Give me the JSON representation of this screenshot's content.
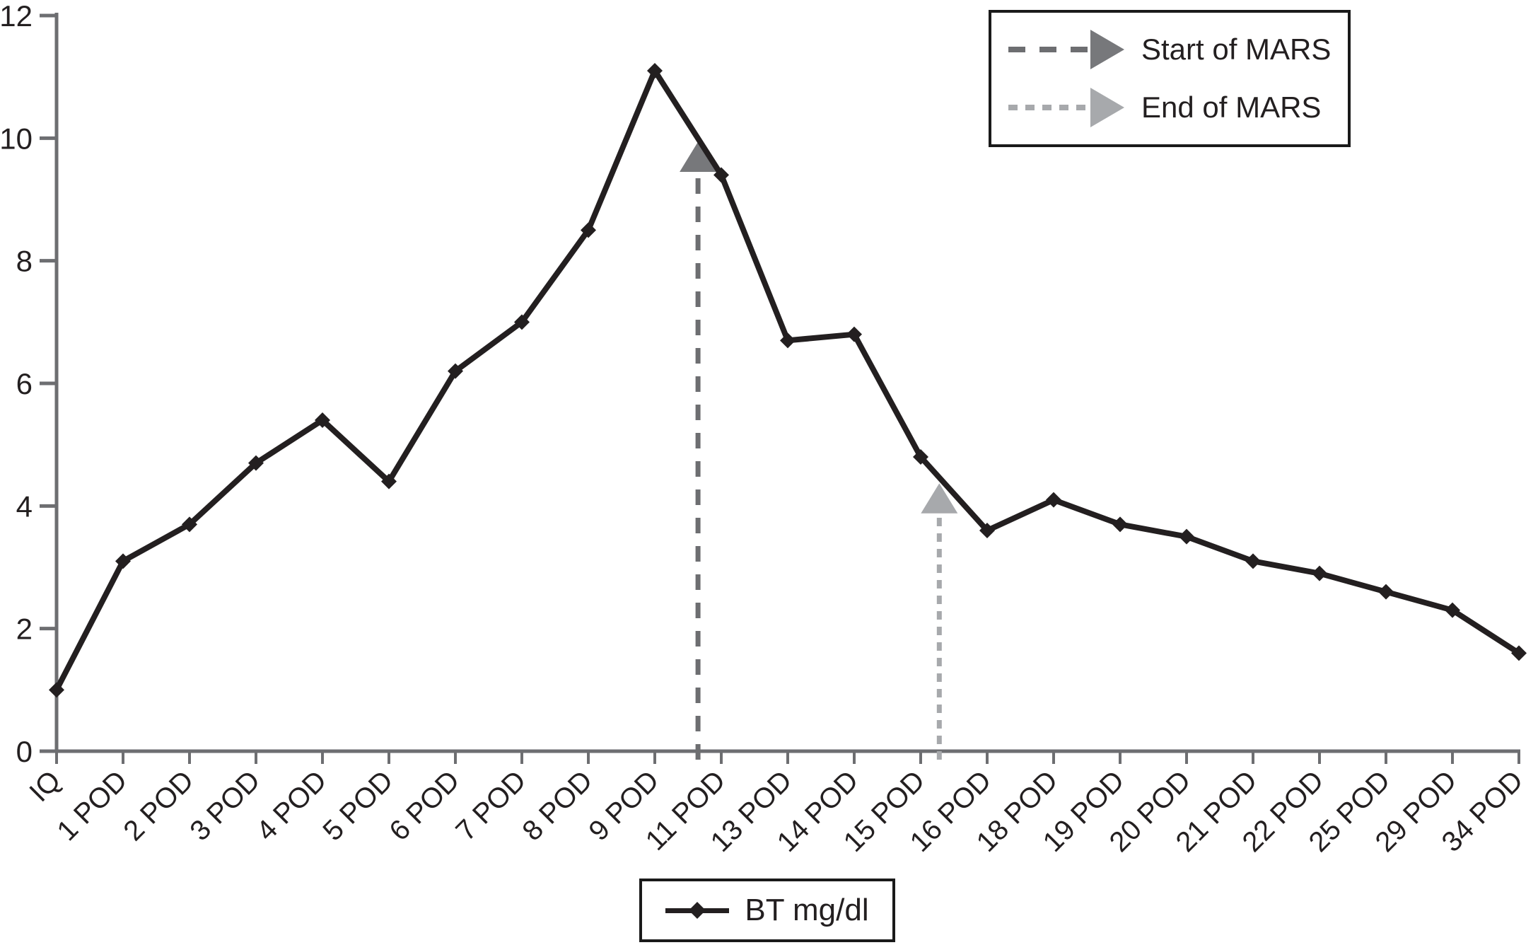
{
  "chart_data": {
    "type": "line",
    "title": "",
    "xlabel": "",
    "ylabel": "",
    "categories": [
      "IQ",
      "1 POD",
      "2 POD",
      "3 POD",
      "4 POD",
      "5 POD",
      "6 POD",
      "7 POD",
      "8 POD",
      "9 POD",
      "11 POD",
      "13 POD",
      "14 POD",
      "15 POD",
      "16 POD",
      "18 POD",
      "19 POD",
      "20 POD",
      "21 POD",
      "22 POD",
      "25 POD",
      "29 POD",
      "34 POD"
    ],
    "series": [
      {
        "name": "BT mg/dl",
        "color": "#231f20",
        "marker": "diamond",
        "values": [
          1.0,
          3.1,
          3.7,
          4.7,
          5.4,
          4.4,
          6.2,
          7.0,
          8.5,
          11.1,
          9.4,
          6.7,
          6.8,
          4.8,
          3.6,
          4.1,
          3.7,
          3.5,
          3.1,
          2.9,
          2.6,
          2.3,
          1.6
        ]
      }
    ],
    "ylim": [
      0,
      12
    ],
    "yticks": [
      0,
      2,
      4,
      6,
      8,
      10,
      12
    ],
    "grid": false,
    "annotations": [
      {
        "id": "start-of-mars",
        "label": "Start of MARS",
        "x_index": 9.65,
        "arrow_tip_value": 9.94,
        "arrow_base_value": 9.45,
        "line_style": "dashed",
        "line_color": "#6d6e71",
        "head_color": "#77787b"
      },
      {
        "id": "end-of-mars",
        "label": "End of MARS",
        "x_index": 13.28,
        "arrow_tip_value": 4.37,
        "arrow_base_value": 3.88,
        "line_style": "dotted",
        "line_color": "#a7a9ac",
        "head_color": "#a7a9ac"
      }
    ],
    "legend_box": {
      "position": "top-right",
      "entries": [
        {
          "label": "Start of MARS",
          "line_style": "dashed",
          "color": "#6d6e71"
        },
        {
          "label": "End of MARS",
          "line_style": "dotted",
          "color": "#a7a9ac"
        }
      ]
    },
    "series_legend": {
      "position": "bottom-center",
      "label": "BT mg/dl"
    }
  },
  "colors": {
    "background": "#ffffff",
    "axis": "#6d6e71",
    "text": "#231f20",
    "line": "#231f20"
  }
}
